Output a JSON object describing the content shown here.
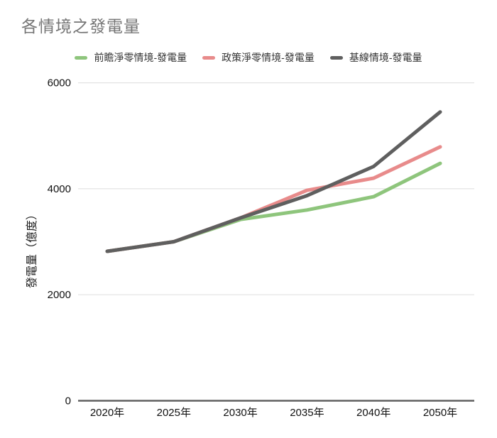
{
  "title": "各情境之發電量",
  "chart_data": {
    "type": "line",
    "categories": [
      "2020年",
      "2025年",
      "2030年",
      "2035年",
      "2040年",
      "2050年"
    ],
    "series": [
      {
        "name": "前瞻淨零情境-發電量",
        "color": "#8ec57c",
        "values": [
          2820,
          3000,
          3420,
          3600,
          3850,
          4480
        ]
      },
      {
        "name": "政策淨零情境-發電量",
        "color": "#e88b8b",
        "values": [
          2820,
          3000,
          3450,
          3970,
          4200,
          4790
        ]
      },
      {
        "name": "基線情境-發電量",
        "color": "#5f5f5f",
        "values": [
          2820,
          3000,
          3450,
          3870,
          4420,
          5450
        ]
      }
    ],
    "ylabel": "發電量（億度）",
    "xlabel": "",
    "yticks": [
      0,
      2000,
      4000,
      6000
    ],
    "ylim": [
      0,
      6000
    ],
    "grid": true,
    "legend_position": "top",
    "colors": {
      "title": "#757575",
      "grid": "#e3e3e3",
      "axis": "#616161",
      "tick_text": "#111111"
    }
  }
}
